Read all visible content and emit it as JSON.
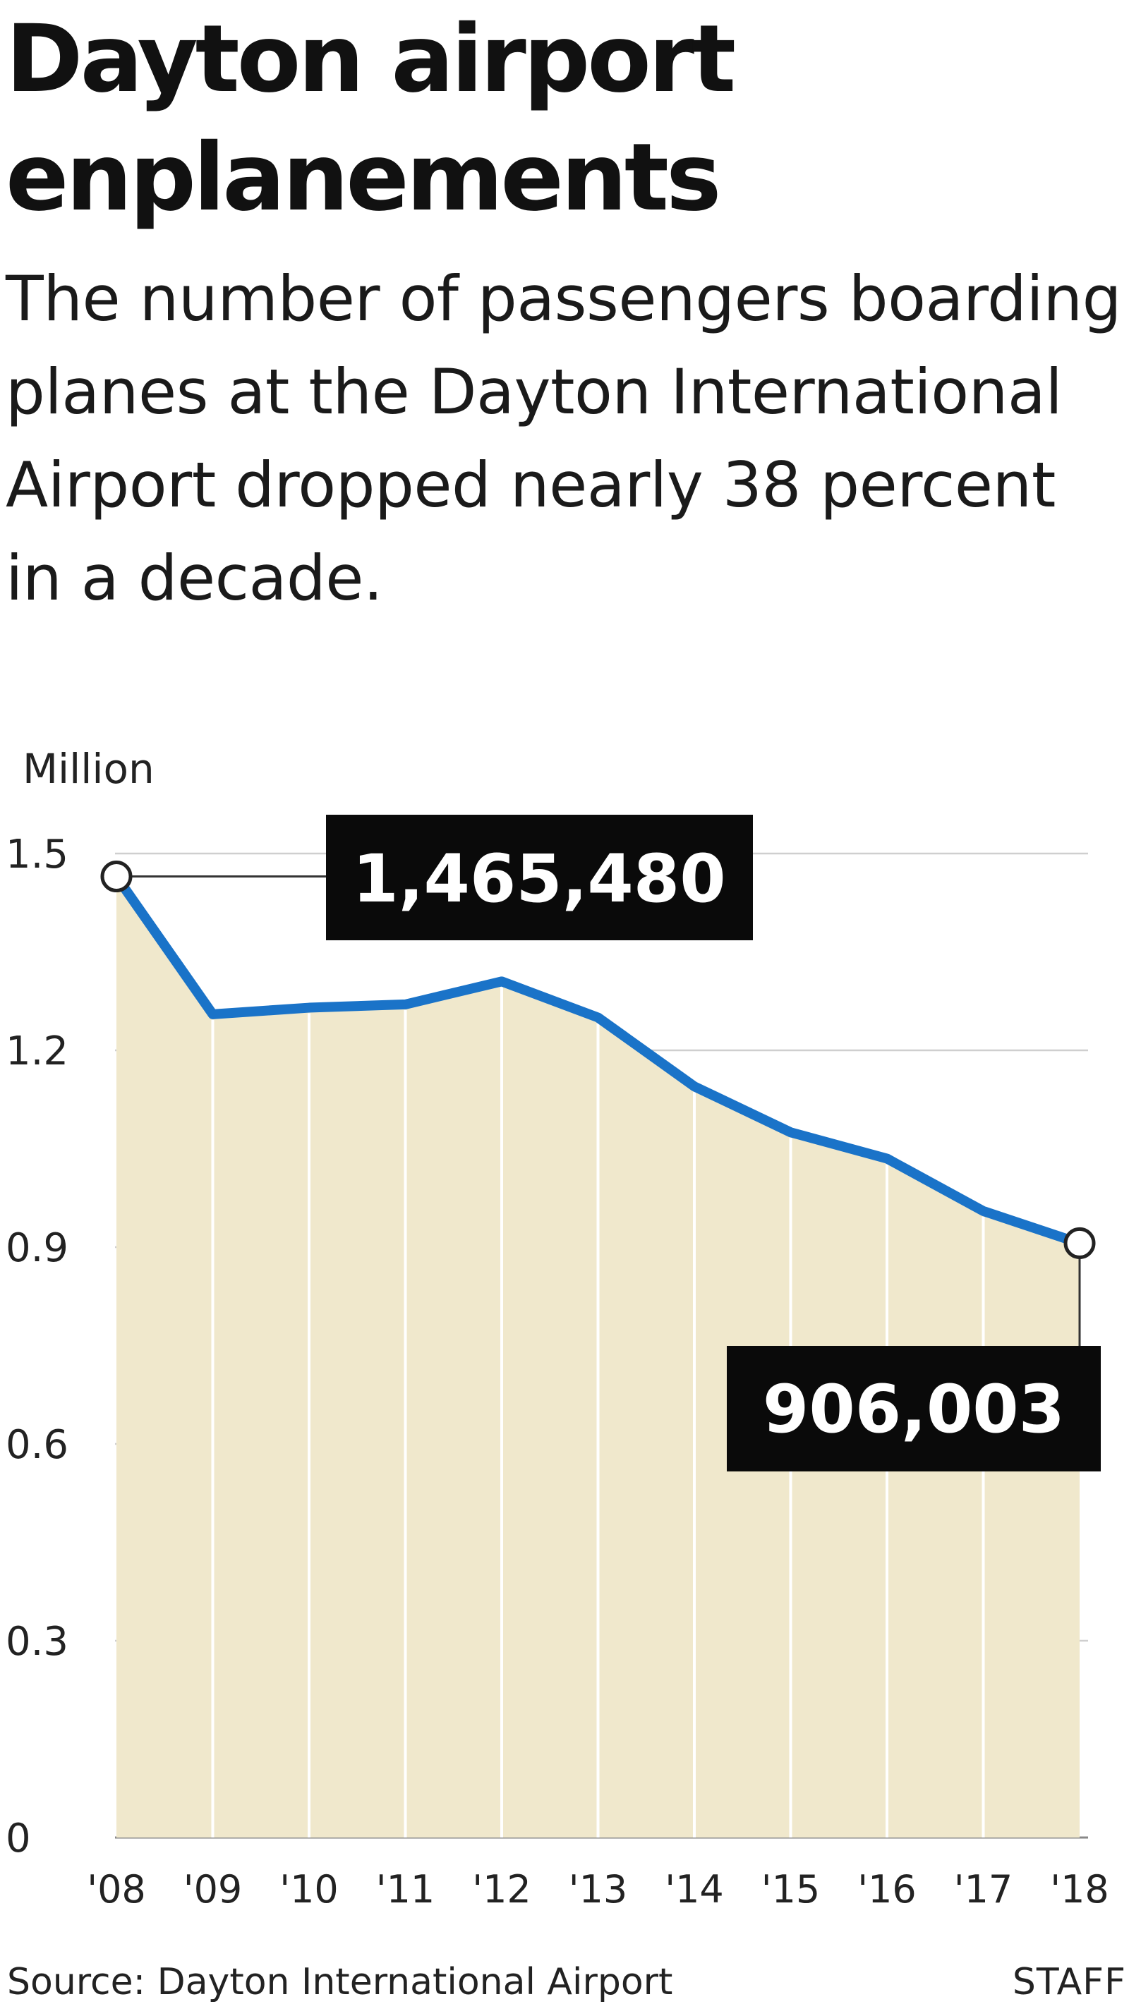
{
  "title": "Dayton airport enplanements",
  "subtitle": "The number of passengers boarding planes at the Dayton International Airport dropped nearly 38 percent in a decade.",
  "source": "Source: Dayton International Airport",
  "credit": "STAFF",
  "colors": {
    "line": "#1a73c8",
    "area": "#f0e8cc",
    "grid": "#cfcfcf",
    "label_box": "#0a0a0a",
    "label_text": "#ffffff"
  },
  "chart_data": {
    "type": "area",
    "title": "Dayton airport enplanements",
    "ylabel": "Million",
    "xlabel": "",
    "categories": [
      "'08",
      "'09",
      "'10",
      "'11",
      "'12",
      "'13",
      "'14",
      "'15",
      "'16",
      "'17",
      "'18"
    ],
    "values": [
      1.465,
      1.255,
      1.265,
      1.27,
      1.305,
      1.25,
      1.145,
      1.075,
      1.035,
      0.955,
      0.906
    ],
    "yticks": [
      "1.5",
      "1.2",
      "0.9",
      "0.6",
      "0.3",
      "0"
    ],
    "ytick_values": [
      1.5,
      1.2,
      0.9,
      0.6,
      0.3,
      0
    ],
    "ylim": [
      0,
      1.5
    ],
    "grid": true,
    "annotations": [
      {
        "index": 0,
        "text": "1,465,480"
      },
      {
        "index": 10,
        "text": "906,003"
      }
    ]
  }
}
